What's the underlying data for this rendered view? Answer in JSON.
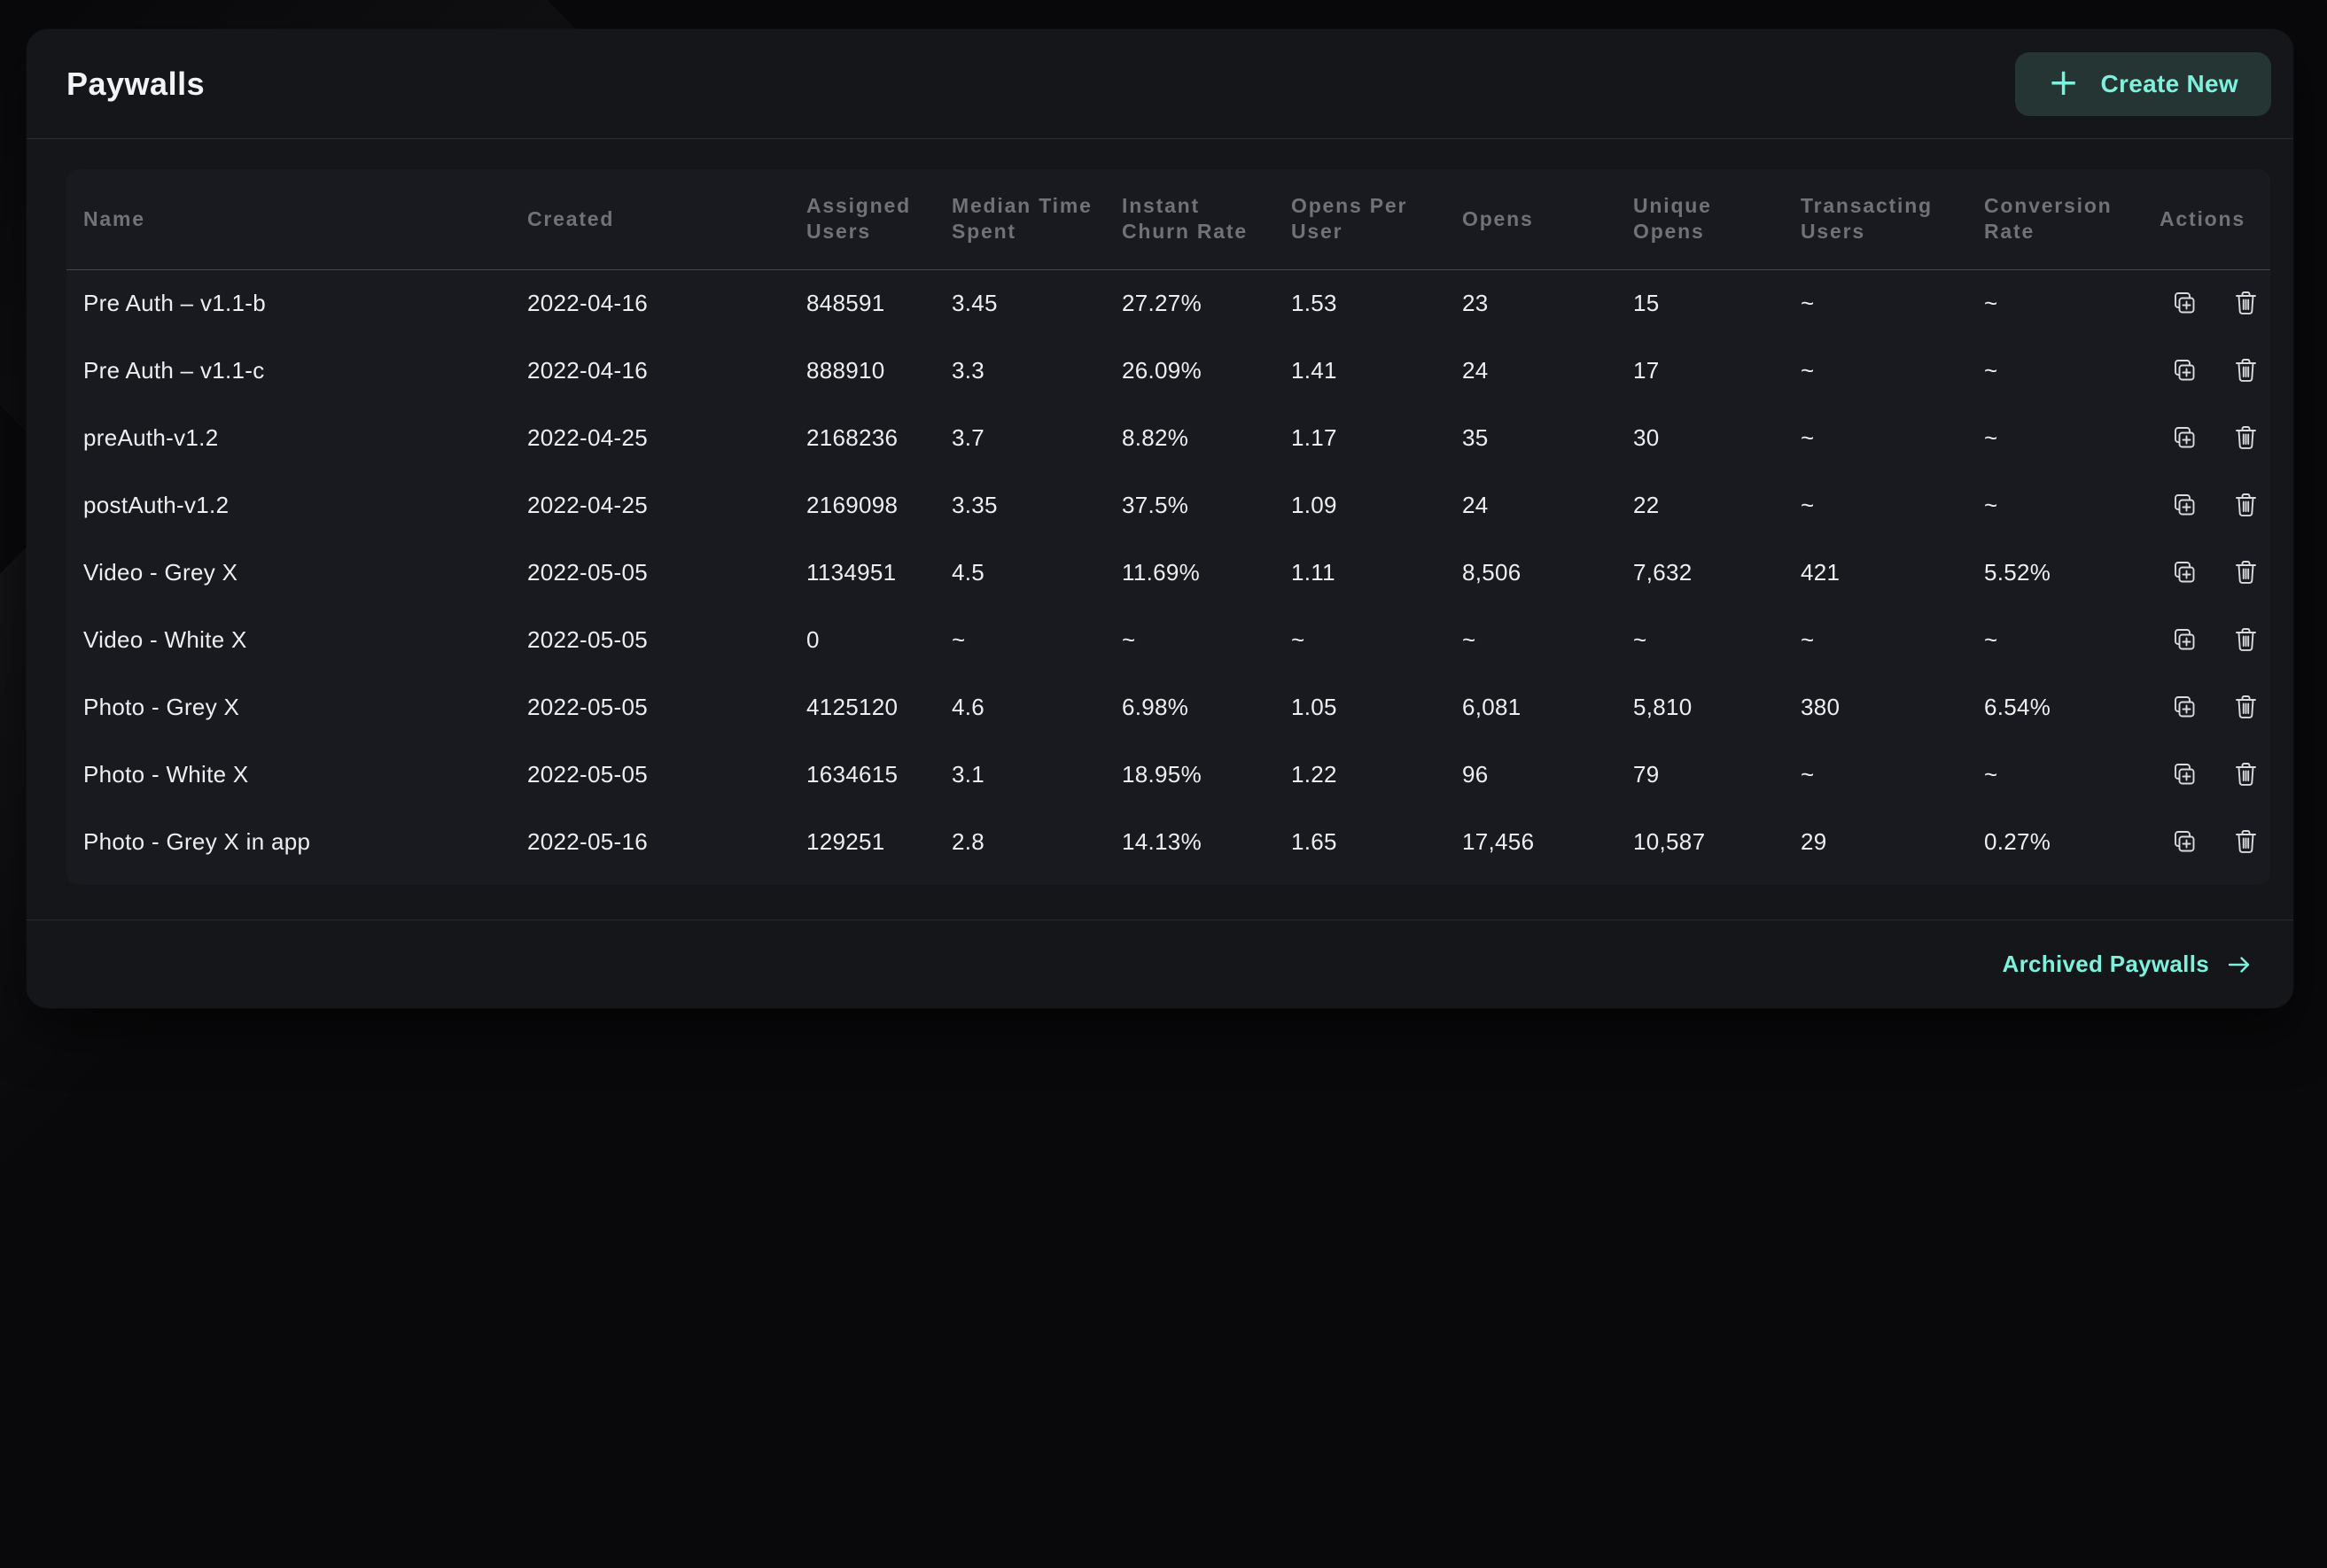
{
  "card": {
    "title": "Paywalls",
    "create_button": {
      "plus": "+",
      "label": "Create New"
    },
    "footer": {
      "archived_link_label": "Archived Paywalls",
      "arrow": "→"
    }
  },
  "table": {
    "columns": [
      {
        "key": "name",
        "label": "Name"
      },
      {
        "key": "created",
        "label": "Created"
      },
      {
        "key": "assigned_users",
        "label": "Assigned Users"
      },
      {
        "key": "median_time_spent",
        "label": "Median Time Spent"
      },
      {
        "key": "instant_churn_rate",
        "label": "Instant Churn Rate"
      },
      {
        "key": "opens_per_user",
        "label": "Opens Per User"
      },
      {
        "key": "opens",
        "label": "Opens"
      },
      {
        "key": "unique_opens",
        "label": "Unique Opens"
      },
      {
        "key": "transacting_users",
        "label": "Transacting Users"
      },
      {
        "key": "conversion_rate",
        "label": "Conversion Rate"
      },
      {
        "key": "actions",
        "label": "Actions"
      }
    ],
    "empty_value": "~",
    "rows": [
      {
        "name": "Pre Auth – v1.1-b",
        "created": "2022-04-16",
        "assigned_users": "848591",
        "median_time_spent": "3.45",
        "instant_churn_rate": "27.27%",
        "opens_per_user": "1.53",
        "opens": "23",
        "unique_opens": "15",
        "transacting_users": "~",
        "conversion_rate": "~"
      },
      {
        "name": "Pre Auth – v1.1-c",
        "created": "2022-04-16",
        "assigned_users": "888910",
        "median_time_spent": "3.3",
        "instant_churn_rate": "26.09%",
        "opens_per_user": "1.41",
        "opens": "24",
        "unique_opens": "17",
        "transacting_users": "~",
        "conversion_rate": "~"
      },
      {
        "name": "preAuth-v1.2",
        "created": "2022-04-25",
        "assigned_users": "2168236",
        "median_time_spent": "3.7",
        "instant_churn_rate": "8.82%",
        "opens_per_user": "1.17",
        "opens": "35",
        "unique_opens": "30",
        "transacting_users": "~",
        "conversion_rate": "~"
      },
      {
        "name": "postAuth-v1.2",
        "created": "2022-04-25",
        "assigned_users": "2169098",
        "median_time_spent": "3.35",
        "instant_churn_rate": "37.5%",
        "opens_per_user": "1.09",
        "opens": "24",
        "unique_opens": "22",
        "transacting_users": "~",
        "conversion_rate": "~"
      },
      {
        "name": "Video - Grey X",
        "created": "2022-05-05",
        "assigned_users": "1134951",
        "median_time_spent": "4.5",
        "instant_churn_rate": "11.69%",
        "opens_per_user": "1.11",
        "opens": "8,506",
        "unique_opens": "7,632",
        "transacting_users": "421",
        "conversion_rate": "5.52%"
      },
      {
        "name": "Video - White X",
        "created": "2022-05-05",
        "assigned_users": "0",
        "median_time_spent": "~",
        "instant_churn_rate": "~",
        "opens_per_user": "~",
        "opens": "~",
        "unique_opens": "~",
        "transacting_users": "~",
        "conversion_rate": "~"
      },
      {
        "name": "Photo - Grey X",
        "created": "2022-05-05",
        "assigned_users": "4125120",
        "median_time_spent": "4.6",
        "instant_churn_rate": "6.98%",
        "opens_per_user": "1.05",
        "opens": "6,081",
        "unique_opens": "5,810",
        "transacting_users": "380",
        "conversion_rate": "6.54%"
      },
      {
        "name": "Photo - White X",
        "created": "2022-05-05",
        "assigned_users": "1634615",
        "median_time_spent": "3.1",
        "instant_churn_rate": "18.95%",
        "opens_per_user": "1.22",
        "opens": "96",
        "unique_opens": "79",
        "transacting_users": "~",
        "conversion_rate": "~"
      },
      {
        "name": "Photo - Grey X in app",
        "created": "2022-05-16",
        "assigned_users": "129251",
        "median_time_spent": "2.8",
        "instant_churn_rate": "14.13%",
        "opens_per_user": "1.65",
        "opens": "17,456",
        "unique_opens": "10,587",
        "transacting_users": "29",
        "conversion_rate": "0.27%"
      }
    ],
    "row_action_icons": [
      "duplicate-icon",
      "trash-icon"
    ]
  },
  "colors": {
    "page_bg": "#09090b",
    "card_bg": "#15161a",
    "panel_bg": "#191a1f",
    "accent": "#7ff0dc",
    "accent_button_bg": "#243533",
    "header_text": "#6f7277",
    "body_text": "#edeeef",
    "icon": "#d8dadc"
  }
}
